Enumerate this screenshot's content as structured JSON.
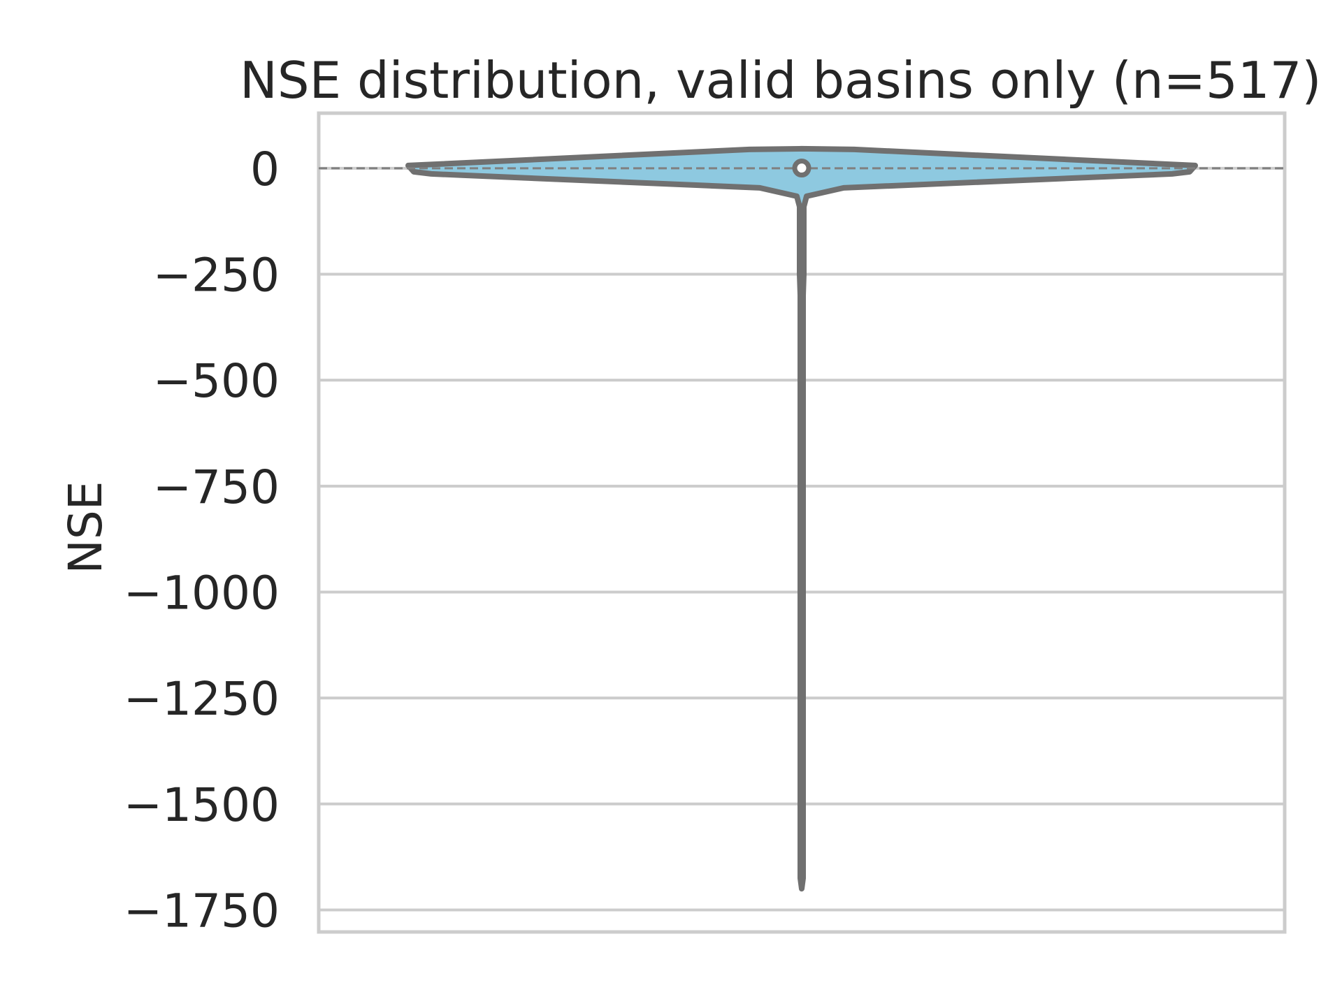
{
  "chart_data": {
    "type": "violin",
    "title": "NSE distribution, valid basins only (n=517)",
    "xlabel": "",
    "ylabel": "NSE",
    "ylim": [
      -1802,
      130
    ],
    "yticks": [
      0,
      -250,
      -500,
      -750,
      -1000,
      -1250,
      -1500,
      -1750
    ],
    "ytick_labels": [
      "0",
      "−250",
      "−500",
      "−750",
      "−1000",
      "−1250",
      "−1500",
      "−1750"
    ],
    "grid": "horizontal",
    "reference_line": {
      "y": 0,
      "style": "dashed",
      "color": "#808080"
    },
    "series": [
      {
        "values_summary": {
          "min": -1700,
          "max": 0.9,
          "median": 0.5,
          "q1": 0.2,
          "q3": 0.7
        },
        "outline_color": "#707070",
        "fill_color": "#8ec9e0"
      }
    ],
    "colors": {
      "fill": "#8ec9e0",
      "outline": "#707070",
      "grid": "#cccccc",
      "text": "#262626"
    }
  }
}
